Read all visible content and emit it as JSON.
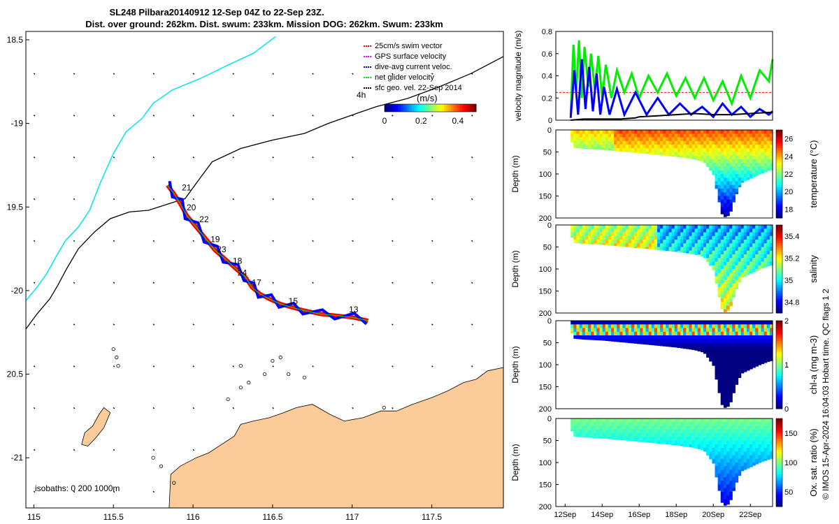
{
  "title": {
    "line1": "SL248 Pilbara20140912 12-Sep 04Z to 22-Sep 23Z.",
    "line2": "Dist. over ground: 262km. Dist. swum: 233km. Mission DOG: 262km. Swum: 233km"
  },
  "copyright": "© IMOS 15-Apr-2024 16:04:03 Hobart time. QC flags 1  2",
  "colors": {
    "coast": "#fccb9a",
    "isobath200": "#000000",
    "isobath1000": "#00e5ee",
    "track_red": "#ff0000",
    "track_blue": "#0000ff",
    "green": "#00ee00",
    "black": "#000000"
  },
  "chart_data": [
    {
      "type": "map",
      "name": "glider-track-map",
      "xlim": [
        114.95,
        117.95
      ],
      "ylim": [
        -21.3,
        -18.45
      ],
      "xticks": [
        115,
        115.5,
        116,
        116.5,
        117,
        117.5
      ],
      "xtick_labels": [
        "115",
        "115.5",
        "116",
        "116.5",
        "117",
        "117.5"
      ],
      "yticks": [
        -18.5,
        -19,
        -19.5,
        -20,
        -20.5,
        -21
      ],
      "ytick_labels": [
        "18.5",
        "-19",
        "19.5",
        "-20",
        "20.5",
        "-21"
      ],
      "legend": {
        "placement": "top-right",
        "entries": [
          {
            "label": "25cm/s swim vector",
            "color": "#ff0000"
          },
          {
            "label": "GPS surface velocity",
            "color": "#ff00ff"
          },
          {
            "label": "dive-avg current veloc.",
            "color": "#0000ff"
          },
          {
            "label": "net glider velocity",
            "color": "#00ee00"
          },
          {
            "label": "sfc geo. vel. 22-Sep 2014",
            "color": "#000000"
          }
        ]
      },
      "speed_colorbar": {
        "label": "(m/s)",
        "extra_label": "4h",
        "ticks": [
          0,
          0.2,
          0.4
        ],
        "tick_labels": [
          "0",
          "0.2",
          "0.4"
        ],
        "range": [
          0,
          0.5
        ]
      },
      "isobath_label": "isobaths: 0   200  1000m",
      "isobath_1000": [
        [
          114.95,
          -20.06
        ],
        [
          115.02,
          -19.98
        ],
        [
          115.08,
          -19.9
        ],
        [
          115.15,
          -19.78
        ],
        [
          115.2,
          -19.7
        ],
        [
          115.28,
          -19.62
        ],
        [
          115.35,
          -19.52
        ],
        [
          115.42,
          -19.35
        ],
        [
          115.5,
          -19.18
        ],
        [
          115.58,
          -19.05
        ],
        [
          115.68,
          -18.97
        ],
        [
          115.75,
          -18.88
        ],
        [
          115.87,
          -18.8
        ],
        [
          116.05,
          -18.73
        ],
        [
          116.2,
          -18.66
        ],
        [
          116.38,
          -18.58
        ],
        [
          116.52,
          -18.48
        ]
      ],
      "isobath_200": [
        [
          114.95,
          -20.23
        ],
        [
          115.02,
          -20.14
        ],
        [
          115.1,
          -20.05
        ],
        [
          115.15,
          -19.97
        ],
        [
          115.2,
          -19.88
        ],
        [
          115.28,
          -19.75
        ],
        [
          115.38,
          -19.65
        ],
        [
          115.48,
          -19.57
        ],
        [
          115.6,
          -19.53
        ],
        [
          115.72,
          -19.52
        ],
        [
          115.85,
          -19.48
        ],
        [
          115.95,
          -19.45
        ],
        [
          116.05,
          -19.32
        ],
        [
          116.12,
          -19.23
        ],
        [
          116.3,
          -19.15
        ],
        [
          116.5,
          -19.1
        ],
        [
          116.7,
          -19.06
        ],
        [
          116.85,
          -19.0
        ],
        [
          117.0,
          -18.95
        ],
        [
          117.15,
          -18.9
        ],
        [
          117.35,
          -18.85
        ],
        [
          117.55,
          -18.78
        ],
        [
          117.75,
          -18.7
        ],
        [
          117.95,
          -18.6
        ]
      ],
      "track": [
        [
          115.84,
          -19.37
        ],
        [
          115.88,
          -19.42
        ],
        [
          115.92,
          -19.48
        ],
        [
          115.96,
          -19.55
        ],
        [
          116.02,
          -19.62
        ],
        [
          116.08,
          -19.69
        ],
        [
          116.14,
          -19.76
        ],
        [
          116.2,
          -19.81
        ],
        [
          116.27,
          -19.87
        ],
        [
          116.33,
          -19.92
        ],
        [
          116.37,
          -19.98
        ],
        [
          116.42,
          -20.02
        ],
        [
          116.48,
          -20.05
        ],
        [
          116.55,
          -20.08
        ],
        [
          116.62,
          -20.1
        ],
        [
          116.7,
          -20.12
        ],
        [
          116.8,
          -20.14
        ],
        [
          116.9,
          -20.15
        ],
        [
          117.0,
          -20.16
        ],
        [
          117.1,
          -20.18
        ]
      ],
      "day_labels": [
        {
          "text": "21",
          "lon": 115.93,
          "lat": -19.4
        },
        {
          "text": "20",
          "lon": 115.96,
          "lat": -19.52
        },
        {
          "text": "22",
          "lon": 116.04,
          "lat": -19.59
        },
        {
          "text": "19",
          "lon": 116.11,
          "lat": -19.71
        },
        {
          "text": "23",
          "lon": 116.15,
          "lat": -19.77
        },
        {
          "text": "18",
          "lon": 116.25,
          "lat": -19.84
        },
        {
          "text": "24",
          "lon": 116.28,
          "lat": -19.91
        },
        {
          "text": "17",
          "lon": 116.37,
          "lat": -19.97
        },
        {
          "text": "15",
          "lon": 116.6,
          "lat": -20.08
        },
        {
          "text": "13",
          "lon": 116.98,
          "lat": -20.13
        }
      ],
      "coastline": [
        [
          115.85,
          -21.3
        ],
        [
          115.86,
          -21.1
        ],
        [
          115.92,
          -21.05
        ],
        [
          116.02,
          -21.0
        ],
        [
          116.1,
          -20.97
        ],
        [
          116.18,
          -20.92
        ],
        [
          116.26,
          -20.87
        ],
        [
          116.3,
          -20.8
        ],
        [
          116.38,
          -20.78
        ],
        [
          116.48,
          -20.76
        ],
        [
          116.57,
          -20.73
        ],
        [
          116.65,
          -20.7
        ],
        [
          116.75,
          -20.68
        ],
        [
          116.86,
          -20.74
        ],
        [
          116.95,
          -20.78
        ],
        [
          117.07,
          -20.76
        ],
        [
          117.18,
          -20.72
        ],
        [
          117.28,
          -20.72
        ],
        [
          117.38,
          -20.68
        ],
        [
          117.5,
          -20.64
        ],
        [
          117.6,
          -20.6
        ],
        [
          117.7,
          -20.55
        ],
        [
          117.78,
          -20.53
        ],
        [
          117.85,
          -20.48
        ],
        [
          117.95,
          -20.46
        ],
        [
          117.95,
          -21.3
        ]
      ],
      "island": [
        [
          115.3,
          -20.92
        ],
        [
          115.32,
          -20.85
        ],
        [
          115.37,
          -20.81
        ],
        [
          115.41,
          -20.74
        ],
        [
          115.44,
          -20.7
        ],
        [
          115.48,
          -20.73
        ],
        [
          115.44,
          -20.82
        ],
        [
          115.39,
          -20.88
        ],
        [
          115.34,
          -20.93
        ]
      ]
    },
    {
      "type": "line",
      "name": "velocity-magnitude",
      "ylabel": "velocity magnitude (m/s)",
      "ylim": [
        0,
        0.8
      ],
      "yticks": [
        0,
        0.2,
        0.4,
        0.6,
        0.8
      ],
      "ytick_labels": [
        "0",
        "0.2",
        "0.4",
        "0.6",
        "0.8"
      ],
      "xlim": [
        11.5,
        23.2
      ],
      "reference_line": {
        "value": 0.25,
        "color": "#ff0000",
        "style": "dashed"
      },
      "series": [
        {
          "name": "net glider velocity",
          "color": "#00ee00",
          "x": [
            12.3,
            12.45,
            12.6,
            12.75,
            12.9,
            13.05,
            13.25,
            13.4,
            13.6,
            13.8,
            14.0,
            14.2,
            14.5,
            14.8,
            15.2,
            15.6,
            16.0,
            16.5,
            17.0,
            17.5,
            18.0,
            18.5,
            19.0,
            19.5,
            20.0,
            20.5,
            21.0,
            21.5,
            22.0,
            22.5,
            23.0,
            23.2
          ],
          "y": [
            0.05,
            0.68,
            0.25,
            0.72,
            0.2,
            0.66,
            0.3,
            0.6,
            0.28,
            0.58,
            0.2,
            0.5,
            0.2,
            0.45,
            0.25,
            0.42,
            0.2,
            0.4,
            0.25,
            0.42,
            0.22,
            0.38,
            0.2,
            0.38,
            0.18,
            0.35,
            0.15,
            0.4,
            0.2,
            0.45,
            0.35,
            0.55
          ]
        },
        {
          "name": "dive-avg current veloc.",
          "color": "#0000ff",
          "x": [
            12.3,
            12.5,
            12.7,
            12.9,
            13.1,
            13.3,
            13.5,
            13.7,
            13.9,
            14.1,
            14.4,
            14.8,
            15.2,
            15.8,
            16.4,
            17.0,
            17.6,
            18.2,
            18.8,
            19.4,
            20.0,
            20.5,
            21.0,
            21.5,
            22.0,
            22.5,
            23.0,
            23.2
          ],
          "y": [
            0.02,
            0.45,
            0.05,
            0.55,
            0.1,
            0.48,
            0.08,
            0.42,
            0.05,
            0.3,
            0.05,
            0.28,
            0.05,
            0.25,
            0.05,
            0.2,
            0.05,
            0.15,
            0.05,
            0.12,
            0.03,
            0.15,
            0.05,
            0.12,
            0.03,
            0.1,
            0.05,
            0.08
          ]
        },
        {
          "name": "sfc geo. vel.",
          "color": "#000000",
          "x": [
            12.3,
            13.0,
            14.0,
            15.0,
            15.8,
            16.0,
            17.0,
            18.0,
            19.0,
            20.0,
            21.0,
            22.0,
            23.0,
            23.2
          ],
          "y": [
            0.0,
            0.01,
            0.01,
            0.01,
            0.02,
            0.03,
            0.04,
            0.05,
            0.06,
            0.05,
            0.05,
            0.06,
            0.07,
            0.07
          ]
        }
      ]
    },
    {
      "type": "heatmap",
      "name": "temperature-section",
      "ylabel": "Depth (m)",
      "cbar_label": "temperature (°C)",
      "clim": [
        17,
        27
      ],
      "cbar_ticks": [
        18,
        20,
        22,
        24,
        26
      ],
      "cbar_tick_labels": [
        "18",
        "20",
        "22",
        "24",
        "26"
      ],
      "yticks": [
        0,
        50,
        100,
        150,
        200
      ],
      "ytick_labels": [
        "0",
        "50",
        "100",
        "150",
        "200"
      ],
      "ylim": [
        0,
        200
      ],
      "xlim": [
        11.5,
        23.2
      ],
      "profile": {
        "x": [
          12.3,
          12.5,
          13.0,
          14.0,
          15.0,
          16.0,
          17.0,
          18.0,
          19.0,
          19.5,
          20.0,
          20.3,
          20.5,
          20.7,
          20.9,
          21.2,
          21.5,
          22.0,
          22.5,
          23.0,
          23.2
        ],
        "maxdepth": [
          20,
          40,
          42,
          44,
          48,
          52,
          56,
          60,
          66,
          72,
          100,
          160,
          195,
          198,
          190,
          150,
          120,
          110,
          100,
          92,
          90
        ]
      },
      "surface_value": 24.5,
      "bottom_value": 17.5
    },
    {
      "type": "heatmap",
      "name": "salinity-section",
      "ylabel": "Depth (m)",
      "cbar_label": "salinity",
      "clim": [
        34.7,
        35.5
      ],
      "cbar_ticks": [
        34.8,
        35,
        35.2,
        35.4
      ],
      "cbar_tick_labels": [
        "34.8",
        "35",
        "35.2",
        "35.4"
      ],
      "yticks": [
        0,
        50,
        100,
        150,
        200
      ],
      "ytick_labels": [
        "0",
        "50",
        "100",
        "150",
        "200"
      ],
      "ylim": [
        0,
        200
      ],
      "xlim": [
        11.5,
        23.2
      ],
      "surface_value": 35.05,
      "bottom_value": 35.4
    },
    {
      "type": "heatmap",
      "name": "chlorophyll-section",
      "ylabel": "Depth (m)",
      "cbar_label": "chl-a (mg m-3)",
      "clim": [
        0,
        2
      ],
      "cbar_ticks": [
        0,
        1,
        2
      ],
      "cbar_tick_labels": [
        "0",
        "1",
        "2"
      ],
      "yticks": [
        0,
        50,
        100,
        150,
        200
      ],
      "ytick_labels": [
        "0",
        "50",
        "100",
        "150",
        "200"
      ],
      "ylim": [
        0,
        200
      ],
      "xlim": [
        11.5,
        23.2
      ],
      "surface_value": 0.1,
      "bottom_value": 0.1
    },
    {
      "type": "heatmap",
      "name": "oxygen-section",
      "ylabel": "Depth (m)",
      "cbar_label": "Ox. sat. ratio (%)",
      "clim": [
        25,
        175
      ],
      "cbar_ticks": [
        50,
        100,
        150
      ],
      "cbar_tick_labels": [
        "50",
        "100",
        "150"
      ],
      "yticks": [
        0,
        50,
        100,
        150,
        200
      ],
      "ytick_labels": [
        "0",
        "50",
        "100",
        "150",
        "200"
      ],
      "ylim": [
        0,
        200
      ],
      "xlim": [
        11.5,
        23.2
      ],
      "xticks": [
        12,
        14,
        16,
        18,
        20,
        22
      ],
      "xtick_labels": [
        "12Sep",
        "14Sep",
        "16Sep",
        "18Sep",
        "20Sep",
        "22Sep"
      ],
      "surface_value": 100,
      "bottom_value": 40
    }
  ]
}
